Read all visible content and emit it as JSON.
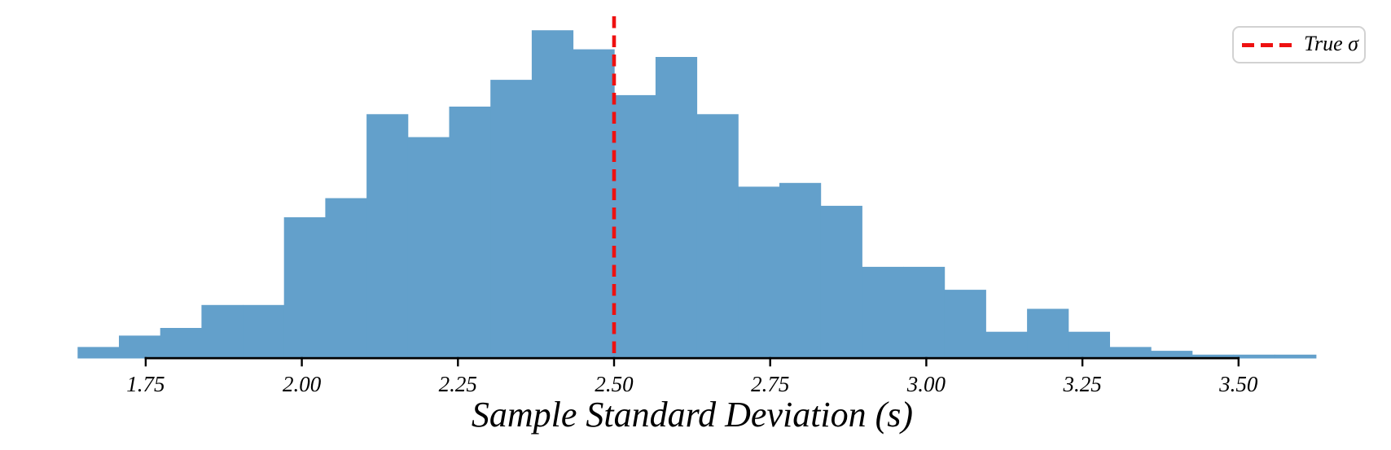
{
  "figure": {
    "background": "#ffffff",
    "text_color": "#000000",
    "spine_color": "#000000"
  },
  "legend": {
    "label": "True σ",
    "border_color": "#d2d2d2",
    "dash_color": "#ee1111"
  },
  "chart_data": {
    "type": "bar",
    "subtype": "histogram",
    "title": "",
    "xlabel": "Sample Standard Deviation (s)",
    "ylabel": "",
    "bar_color": "#63a0cb",
    "bin_start": 1.641,
    "bin_width": 0.0661,
    "counts": [
      3,
      6,
      8,
      14,
      14,
      37,
      42,
      64,
      58,
      66,
      73,
      86,
      81,
      69,
      79,
      64,
      45,
      46,
      40,
      24,
      24,
      18,
      7,
      13,
      7,
      3,
      2,
      1,
      1,
      1
    ],
    "x_ticks": [
      {
        "value": 1.75,
        "label": "1.75"
      },
      {
        "value": 2.0,
        "label": "2.00"
      },
      {
        "value": 2.25,
        "label": "2.25"
      },
      {
        "value": 2.5,
        "label": "2.50"
      },
      {
        "value": 2.75,
        "label": "2.75"
      },
      {
        "value": 3.0,
        "label": "3.00"
      },
      {
        "value": 3.25,
        "label": "3.25"
      },
      {
        "value": 3.5,
        "label": "3.50"
      }
    ],
    "xlim": [
      1.54,
      3.72
    ],
    "grid": false,
    "legend_position": "upper right",
    "reference_line": {
      "value": 2.5,
      "label": "True σ",
      "color": "#ee1111",
      "style": "dashed",
      "orientation": "vertical"
    }
  }
}
